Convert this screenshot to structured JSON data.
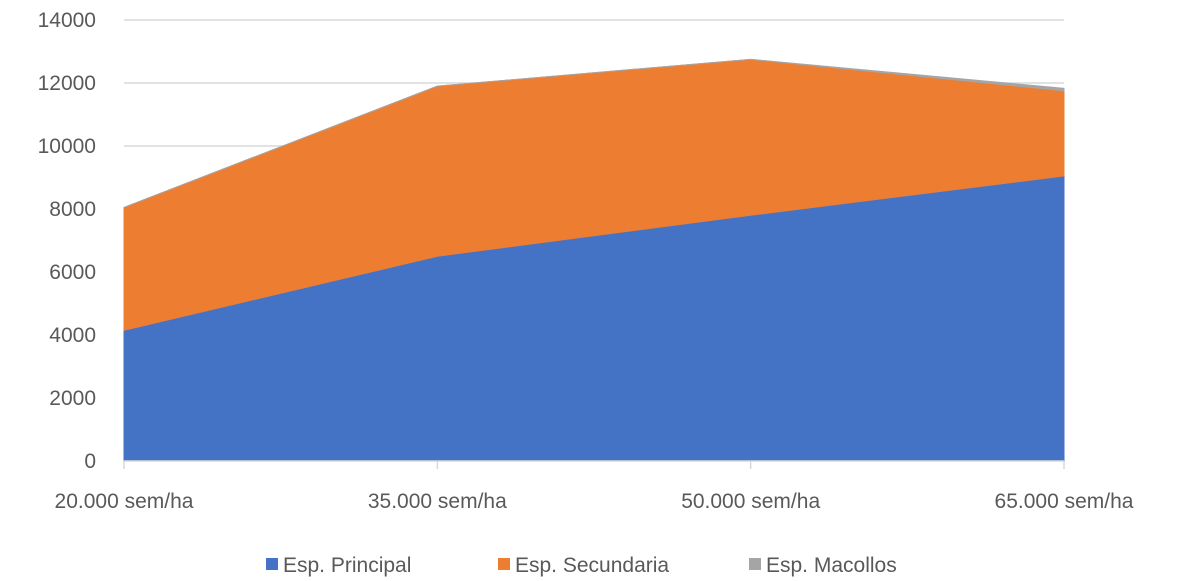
{
  "chart_data": {
    "type": "area",
    "stacked": true,
    "categories": [
      "20.000 sem/ha",
      "35.000 sem/ha",
      "50.000 sem/ha",
      "65.000 sem/ha"
    ],
    "series": [
      {
        "name": "Esp. Principal",
        "color": "#4472C4",
        "values": [
          4150,
          6500,
          7800,
          9050
        ]
      },
      {
        "name": "Esp. Secundaria",
        "color": "#ED7D31",
        "values": [
          3900,
          5400,
          4950,
          2700
        ]
      },
      {
        "name": "Esp. Macollos",
        "color": "#A5A5A5",
        "values": [
          0,
          0,
          0,
          80
        ]
      }
    ],
    "ylim": [
      0,
      14000
    ],
    "yticks": [
      "0",
      "2000",
      "4000",
      "6000",
      "8000",
      "10000",
      "12000",
      "14000"
    ],
    "grid": true,
    "legend": "bottom"
  }
}
